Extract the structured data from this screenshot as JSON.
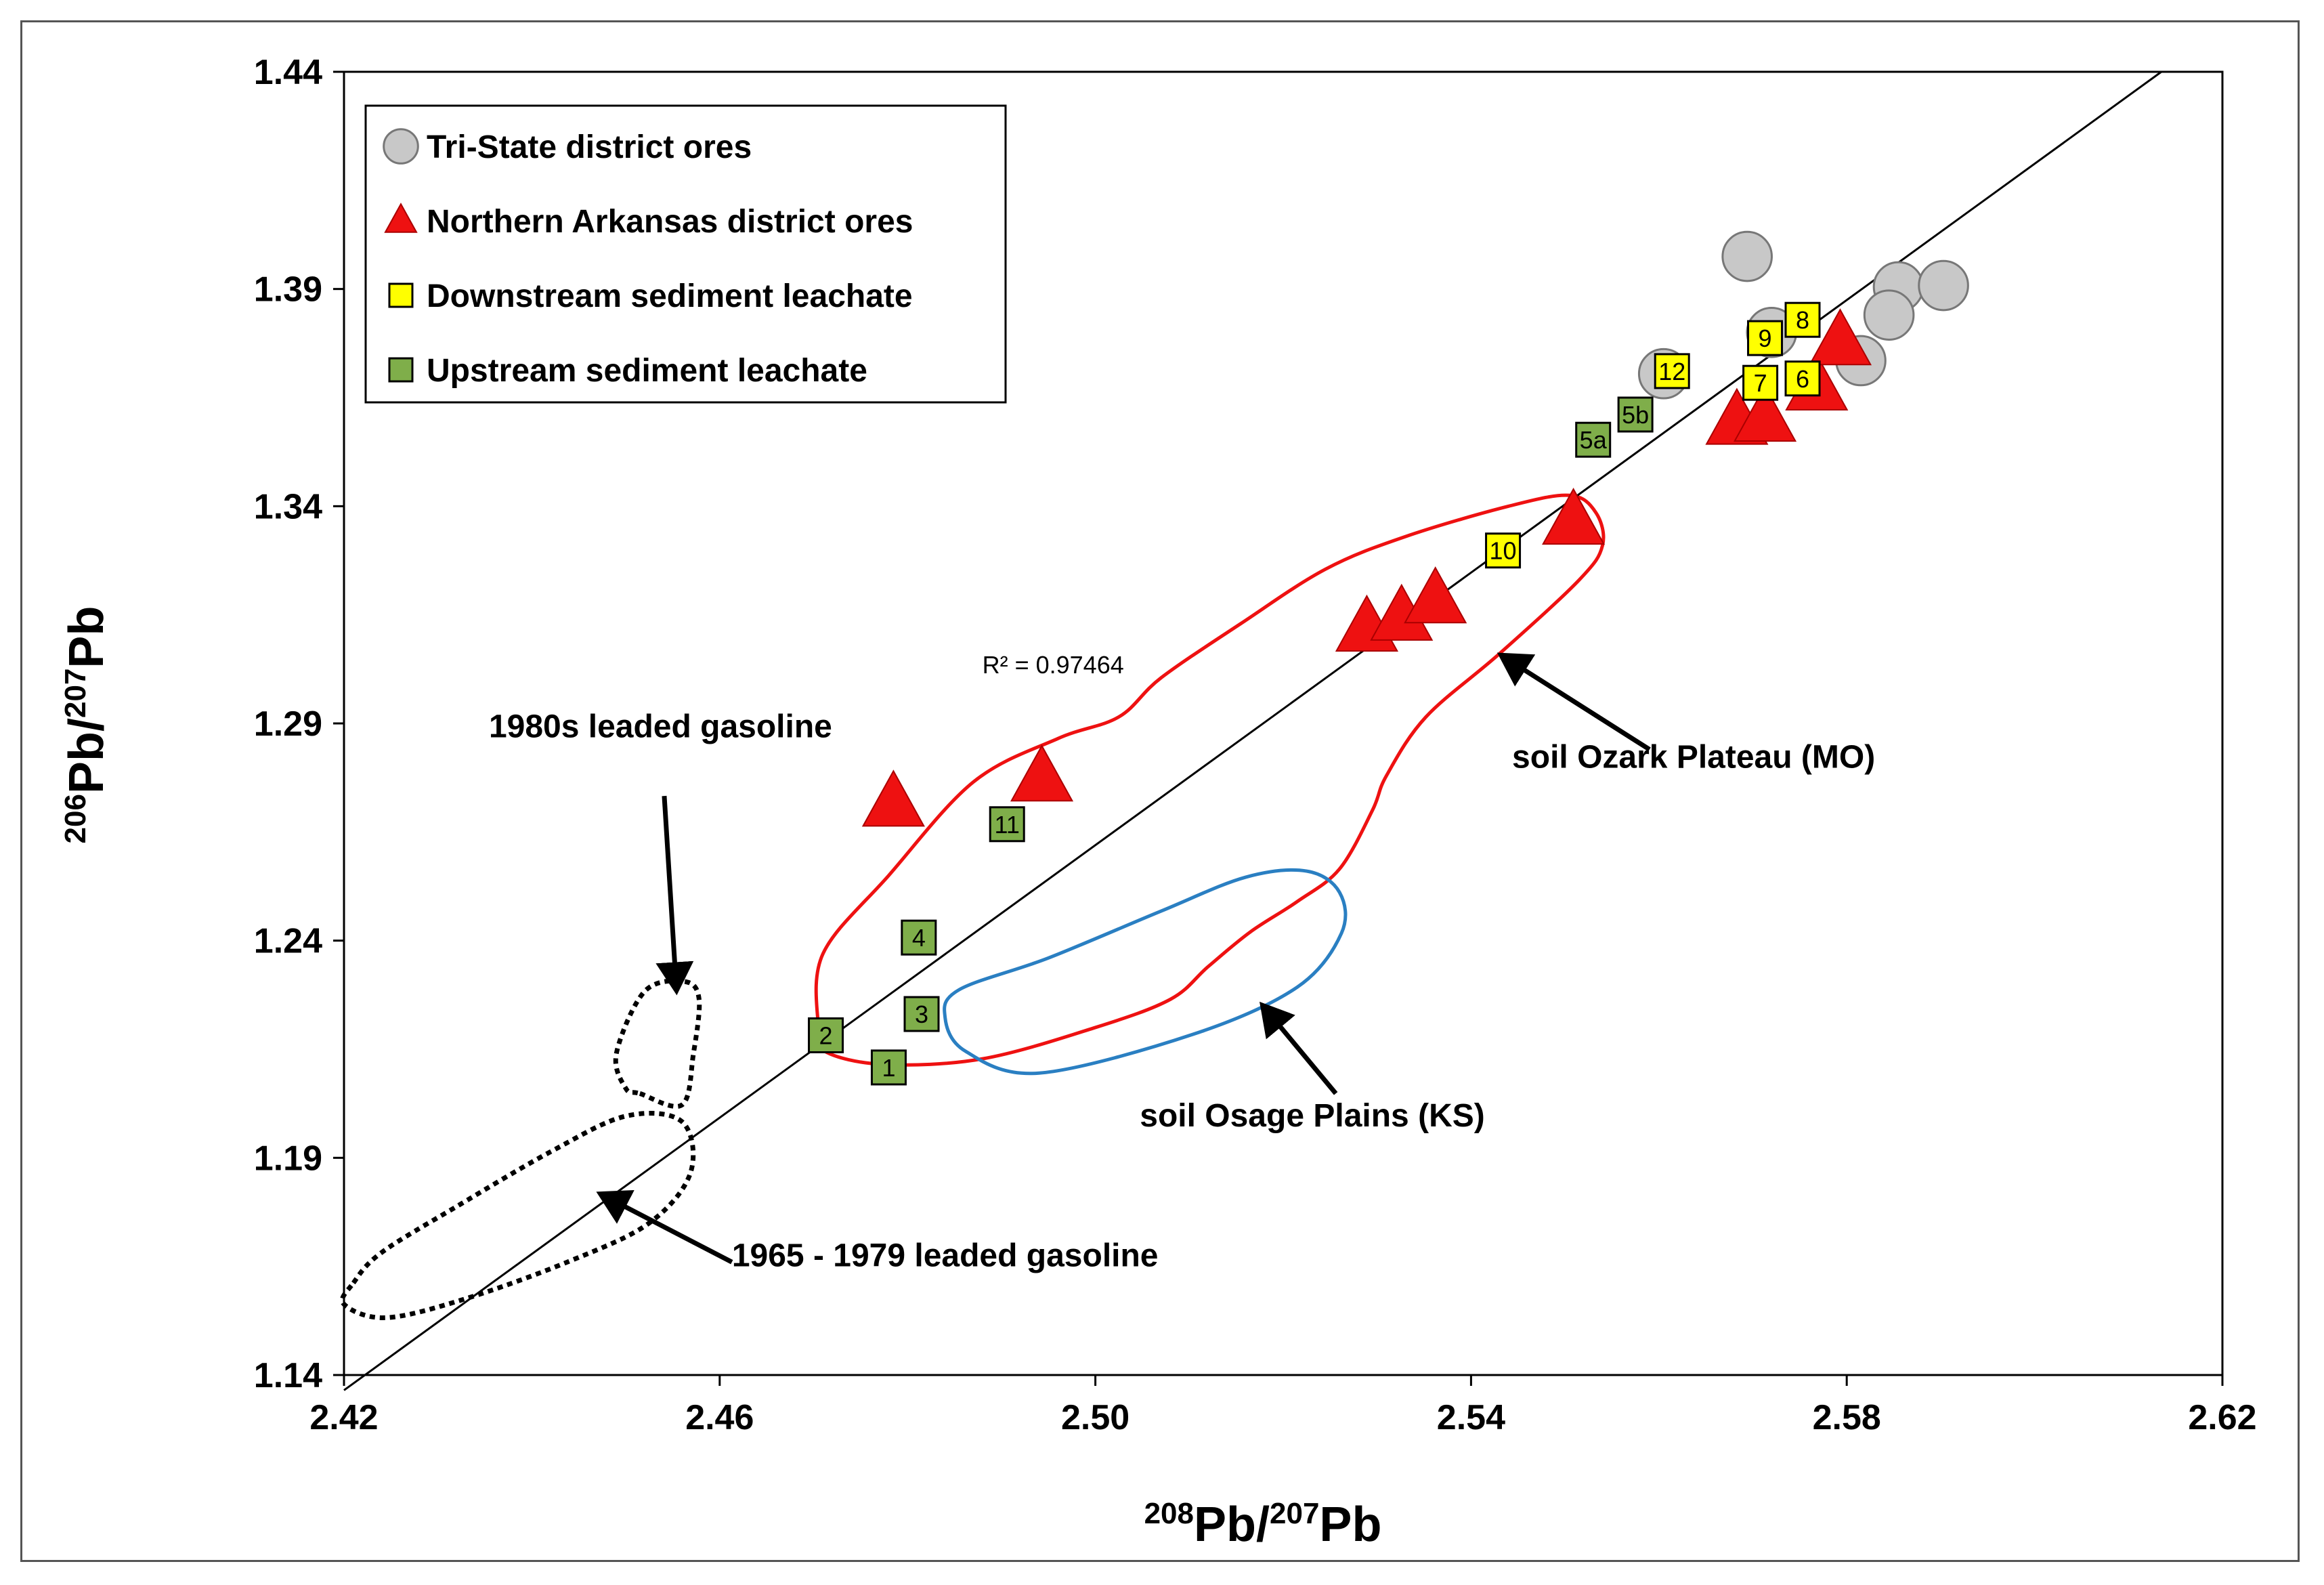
{
  "chart_data": {
    "type": "scatter",
    "title": "",
    "xlabel_base": "Pb/",
    "xlabel_sup1": "208",
    "xlabel_sup2": "207",
    "xlabel_end": "Pb",
    "ylabel_base": "Pb/",
    "ylabel_sup1": "206",
    "ylabel_sup2": "207",
    "ylabel_end": "Pb",
    "xlim": [
      2.42,
      2.62
    ],
    "ylim": [
      1.14,
      1.44
    ],
    "xticks": [
      "2.42",
      "2.46",
      "2.50",
      "2.54",
      "2.58",
      "2.62"
    ],
    "yticks": [
      "1.44",
      "1.39",
      "1.34",
      "1.29",
      "1.24",
      "1.19",
      "1.14"
    ],
    "xtick_values": [
      2.42,
      2.46,
      2.5,
      2.54,
      2.58,
      2.62
    ],
    "ytick_values": [
      1.44,
      1.39,
      1.34,
      1.29,
      1.24,
      1.19,
      1.14
    ],
    "legend": {
      "position": "top-left",
      "entries": [
        {
          "label": "Tri-State district ores",
          "marker": "circle",
          "color": "#c8c8c8"
        },
        {
          "label": "Northern Arkansas district ores",
          "marker": "triangle",
          "color": "#ee1111"
        },
        {
          "label": "Downstream sediment leachate",
          "marker": "square",
          "color": "#ffff00"
        },
        {
          "label": "Upstream sediment leachate",
          "marker": "square",
          "color": "#7fae4a"
        }
      ]
    },
    "series": [
      {
        "name": "Tri-State district ores",
        "marker": "circle",
        "color": "#c8c8c8",
        "points": [
          [
            2.5694,
            1.3975
          ],
          [
            2.5855,
            1.3905
          ],
          [
            2.5903,
            1.3908
          ],
          [
            2.5845,
            1.384
          ],
          [
            2.5815,
            1.3735
          ],
          [
            2.5605,
            1.3705
          ],
          [
            2.572,
            1.38
          ]
        ]
      },
      {
        "name": "Northern Arkansas district ores",
        "marker": "triangle",
        "color": "#ee1111",
        "points": [
          [
            2.4785,
            1.2715
          ],
          [
            2.4943,
            1.2773
          ],
          [
            2.5289,
            1.3118
          ],
          [
            2.5326,
            1.3143
          ],
          [
            2.5362,
            1.3183
          ],
          [
            2.5509,
            1.3364
          ],
          [
            2.5683,
            1.3594
          ],
          [
            2.5713,
            1.3601
          ],
          [
            2.5768,
            1.3673
          ],
          [
            2.5793,
            1.3777
          ]
        ]
      },
      {
        "name": "Downstream sediment leachate",
        "marker": "square",
        "color": "#ffff00",
        "points": [
          {
            "x": 2.5753,
            "y": 1.3829,
            "label": "8"
          },
          {
            "x": 2.5713,
            "y": 1.3787,
            "label": "9"
          },
          {
            "x": 2.5614,
            "y": 1.3711,
            "label": "12"
          },
          {
            "x": 2.5708,
            "y": 1.3684,
            "label": "7"
          },
          {
            "x": 2.5753,
            "y": 1.3694,
            "label": "6"
          },
          {
            "x": 2.5434,
            "y": 1.3298,
            "label": "10"
          }
        ]
      },
      {
        "name": "Upstream sediment leachate",
        "marker": "square",
        "color": "#7fae4a",
        "points": [
          {
            "x": 2.5575,
            "y": 1.3611,
            "label": "5b"
          },
          {
            "x": 2.553,
            "y": 1.3553,
            "label": "5a"
          },
          {
            "x": 2.4906,
            "y": 1.2668,
            "label": "11"
          },
          {
            "x": 2.4812,
            "y": 1.2407,
            "label": "4"
          },
          {
            "x": 2.4815,
            "y": 1.2231,
            "label": "3"
          },
          {
            "x": 2.4713,
            "y": 1.2182,
            "label": "2"
          },
          {
            "x": 2.478,
            "y": 1.2108,
            "label": "1"
          }
        ]
      }
    ],
    "trendline": {
      "x": [
        2.42,
        2.6135
      ],
      "y": [
        1.1365,
        1.44
      ],
      "label": "R² = 0.97464",
      "label_at": {
        "x": 2.4955,
        "y": 1.3015
      }
    },
    "regions": [
      {
        "name": "soil Ozark Plateau (MO)",
        "color": "#ee1111",
        "style": "solid",
        "outline": [
          [
            2.4712,
            1.2145
          ],
          [
            2.4775,
            1.2115
          ],
          [
            2.488,
            1.2128
          ],
          [
            2.5,
            1.22
          ],
          [
            2.508,
            1.2265
          ],
          [
            2.512,
            1.234
          ],
          [
            2.5165,
            1.242
          ],
          [
            2.5215,
            1.249
          ],
          [
            2.526,
            1.2565
          ],
          [
            2.5295,
            1.27
          ],
          [
            2.531,
            1.278
          ],
          [
            2.5352,
            1.2915
          ],
          [
            2.543,
            1.306
          ],
          [
            2.5515,
            1.323
          ],
          [
            2.554,
            1.331
          ],
          [
            2.5533,
            1.3385
          ],
          [
            2.5505,
            1.3425
          ],
          [
            2.544,
            1.34
          ],
          [
            2.533,
            1.333
          ],
          [
            2.5245,
            1.3255
          ],
          [
            2.5155,
            1.313
          ],
          [
            2.507,
            1.3005
          ],
          [
            2.5025,
            1.2915
          ],
          [
            2.496,
            1.2865
          ],
          [
            2.487,
            1.2765
          ],
          [
            2.478,
            1.255
          ],
          [
            2.471,
            1.237
          ],
          [
            2.4705,
            1.22
          ]
        ]
      },
      {
        "name": "soil Osage Plains (KS)",
        "color": "#2a7fc2",
        "style": "solid",
        "outline": [
          [
            2.4855,
            1.2287
          ],
          [
            2.495,
            1.236
          ],
          [
            2.507,
            1.2468
          ],
          [
            2.516,
            1.2546
          ],
          [
            2.5225,
            1.256
          ],
          [
            2.526,
            1.2511
          ],
          [
            2.5262,
            1.2417
          ],
          [
            2.5215,
            1.2293
          ],
          [
            2.5105,
            1.2185
          ],
          [
            2.494,
            1.2095
          ],
          [
            2.4862,
            1.2145
          ],
          [
            2.484,
            1.2223
          ]
        ]
      },
      {
        "name": "1980s leaded gasoline",
        "color": "#000000",
        "style": "dotted",
        "outline": [
          [
            2.4515,
            1.2048
          ],
          [
            2.456,
            1.2022
          ],
          [
            2.4572,
            1.2139
          ],
          [
            2.4578,
            1.2266
          ],
          [
            2.4562,
            1.2306
          ],
          [
            2.452,
            1.2283
          ],
          [
            2.449,
            1.214
          ],
          [
            2.45,
            1.206
          ]
        ]
      },
      {
        "name": "1965 - 1979 leaded gasoline",
        "color": "#000000",
        "style": "dotted",
        "outline": [
          [
            2.421,
            1.1612
          ],
          [
            2.424,
            1.1682
          ],
          [
            2.432,
            1.1788
          ],
          [
            2.442,
            1.1914
          ],
          [
            2.45,
            1.1996
          ],
          [
            2.456,
            1.1983
          ],
          [
            2.4569,
            1.1866
          ],
          [
            2.4525,
            1.175
          ],
          [
            2.444,
            1.1662
          ],
          [
            2.433,
            1.1576
          ],
          [
            2.4245,
            1.1532
          ],
          [
            2.42,
            1.1563
          ]
        ]
      }
    ],
    "annotations": [
      {
        "text": "1980s leaded gasoline",
        "text_at": {
          "x": 2.4537,
          "y": 1.2893
        },
        "arrow_from": {
          "x": 2.4541,
          "y": 1.2733
        },
        "arrow_to": {
          "x": 2.4554,
          "y": 1.2285
        }
      },
      {
        "text": "1965 - 1979 leaded gasoline",
        "text_at": {
          "x": 2.4613,
          "y": 1.1675
        },
        "arrow_from": {
          "x": 2.4613,
          "y": 1.166
        },
        "arrow_to": {
          "x": 2.4473,
          "y": 1.1817
        }
      },
      {
        "text": "soil Ozark Plateau (MO)",
        "text_at": {
          "x": 2.5637,
          "y": 1.2823
        },
        "arrow_from": {
          "x": 2.559,
          "y": 1.284
        },
        "arrow_to": {
          "x": 2.5432,
          "y": 1.3057
        }
      },
      {
        "text": "soil Osage Plains (KS)",
        "text_at": {
          "x": 2.5231,
          "y": 1.1997
        },
        "arrow_from": {
          "x": 2.5256,
          "y": 1.2048
        },
        "arrow_to": {
          "x": 2.5178,
          "y": 1.2251
        }
      }
    ]
  }
}
